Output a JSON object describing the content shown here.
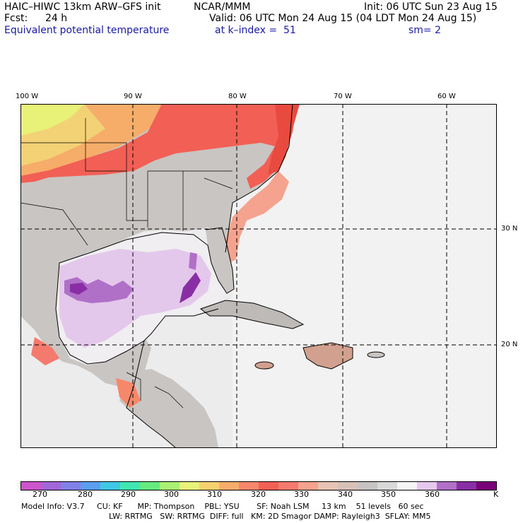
{
  "header": {
    "model": "HAIC–HIWC 13km ARW–GFS init",
    "center": "NCAR/MMM",
    "init": "Init: 06 UTC Sun 23 Aug 15",
    "fcst_label": "Fcst:",
    "fcst_value": "24 h",
    "valid": "Valid: 06 UTC Mon 24 Aug 15 (04 LDT Mon 24 Aug 15)",
    "field": "Equivalent potential temperature",
    "level": "at k–index =  51",
    "smooth": "sm= 2"
  },
  "map": {
    "lon_labels": [
      "100 W",
      "90 W",
      "80 W",
      "70 W",
      "60 W"
    ],
    "lat_labels": [
      "30 N",
      "20 N"
    ]
  },
  "colorbar": {
    "colors": [
      "#cc55cc",
      "#a366d9",
      "#8080e6",
      "#5b9ef0",
      "#3fc7e6",
      "#40e6b0",
      "#66ea80",
      "#aaf073",
      "#e9f278",
      "#f7d070",
      "#f7ad6a",
      "#f7876a",
      "#f25f55",
      "#f47a6e",
      "#f5a28e",
      "#e8c2b2",
      "#d6c0b8",
      "#c8c3c3",
      "#d8d8d8",
      "#f4f4f4",
      "#e6c8ee",
      "#b070c8",
      "#8a2ea6",
      "#7a007a"
    ],
    "tick_labels": [
      "270",
      "280",
      "290",
      "300",
      "310",
      "320",
      "330",
      "340",
      "350",
      "360",
      "K"
    ]
  },
  "footer": {
    "line1": "Model Info: V3.7     CU: KF      MP: Thompson    PBL: YSU       SF: Noah LSM     13 km    51 levels   60 sec",
    "line2": "LW: RRTMG   SW: RRTMG  DIFF: full   KM: 2D Smagor DAMP: Rayleigh3  SFLAY: MM5"
  }
}
